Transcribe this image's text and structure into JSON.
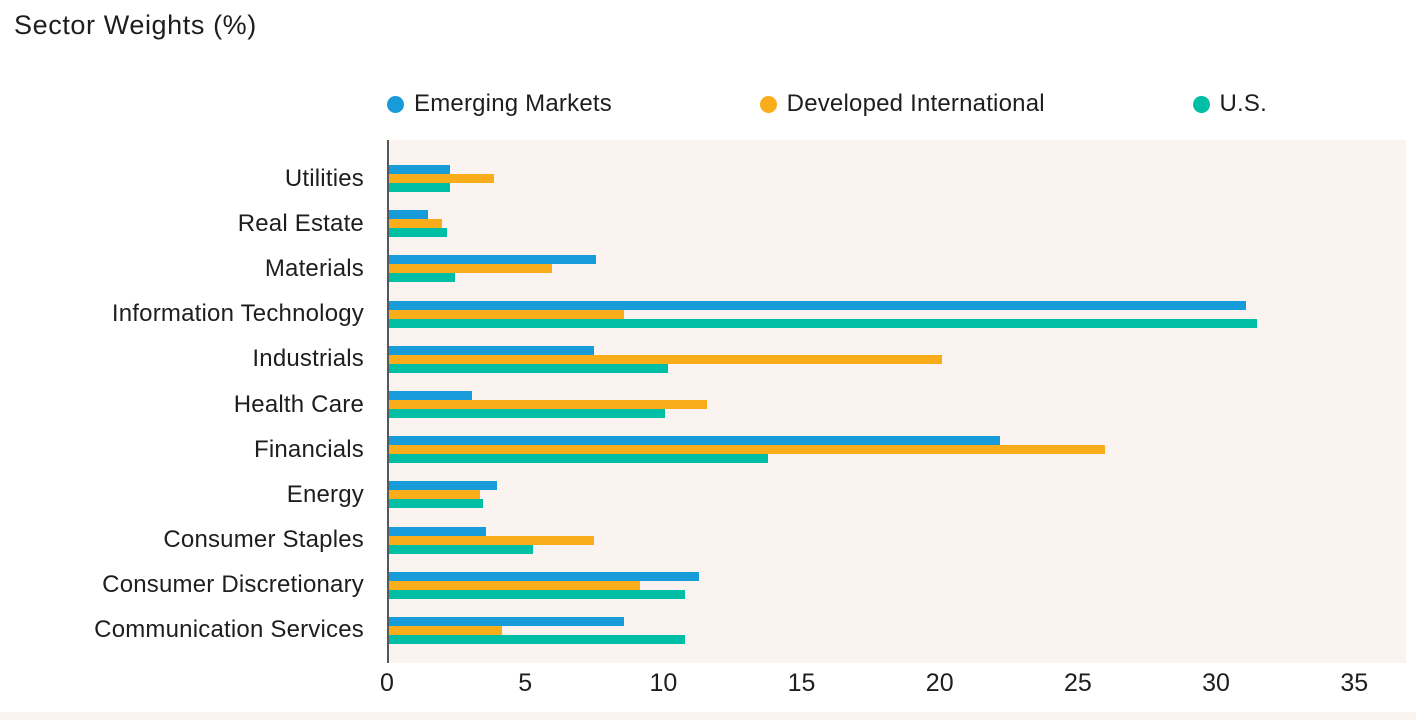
{
  "title": "Sector Weights (%)",
  "colors": {
    "emerging_markets": "#189cd9",
    "developed_international": "#f9ad1a",
    "us": "#00bfa4",
    "plot_background": "#faf3f0",
    "axis_line": "#55575b",
    "text": "#1e1e1e"
  },
  "legend": {
    "swatch_icon": "circle-icon"
  },
  "chart_data": {
    "type": "bar",
    "orientation": "horizontal",
    "title": "Sector Weights (%)",
    "xlabel": "",
    "ylabel": "",
    "grid": false,
    "legend_position": "top",
    "xlim": [
      0,
      36.8
    ],
    "xticks": [
      0,
      5,
      10,
      15,
      20,
      25,
      30,
      35
    ],
    "categories": [
      "Utilities",
      "Real Estate",
      "Materials",
      "Information Technology",
      "Industrials",
      "Health Care",
      "Financials",
      "Energy",
      "Consumer Staples",
      "Consumer Discretionary",
      "Communication Services"
    ],
    "series": [
      {
        "name": "Emerging Markets",
        "color": "#189cd9",
        "values": [
          2.2,
          1.4,
          7.5,
          31.0,
          7.4,
          3.0,
          22.1,
          3.9,
          3.5,
          11.2,
          8.5
        ]
      },
      {
        "name": "Developed International",
        "color": "#f9ad1a",
        "values": [
          3.8,
          1.9,
          5.9,
          8.5,
          20.0,
          11.5,
          25.9,
          3.3,
          7.4,
          9.1,
          4.1
        ]
      },
      {
        "name": "U.S.",
        "color": "#00bfa4",
        "values": [
          2.2,
          2.1,
          2.4,
          31.4,
          10.1,
          10.0,
          13.7,
          3.4,
          5.2,
          10.7,
          10.7
        ]
      }
    ]
  }
}
